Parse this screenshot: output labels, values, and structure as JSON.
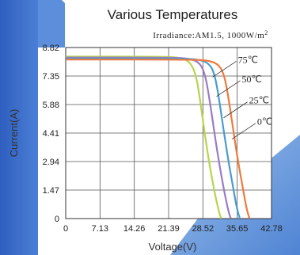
{
  "chart_data": {
    "type": "line",
    "title": "Various Temperatures",
    "subtitle": "Irradiance:AM1.5, 1000W/m",
    "subtitle_sup": "2",
    "xlabel": "Voltage(V)",
    "ylabel": "Current(A)",
    "xlim": [
      0,
      42.78
    ],
    "ylim": [
      0,
      8.82
    ],
    "xticks": [
      0,
      7.13,
      14.26,
      21.39,
      28.52,
      35.65,
      42.78
    ],
    "xtick_labels": [
      "0",
      "7.13",
      "14.26",
      "21.39",
      "28.52",
      "35.65",
      "42.78"
    ],
    "yticks": [
      0,
      1.47,
      2.94,
      4.41,
      5.88,
      7.35,
      8.82
    ],
    "ytick_labels": [
      "0",
      "1.47",
      "2.94",
      "4.41",
      "5.88",
      "7.35",
      "8.82"
    ],
    "grid": true,
    "series": [
      {
        "name": "75℃",
        "color": "#b5d64a",
        "label_anchor": [
          33.5,
          7.95
        ],
        "points": [
          [
            0,
            8.35
          ],
          [
            20,
            8.35
          ],
          [
            24,
            8.3
          ],
          [
            26,
            8.05
          ],
          [
            27.2,
            7.3
          ],
          [
            28,
            6.0
          ],
          [
            29,
            4.2
          ],
          [
            30,
            2.6
          ],
          [
            31,
            1.3
          ],
          [
            31.8,
            0.4
          ],
          [
            32.3,
            0
          ]
        ]
      },
      {
        "name": "50℃",
        "color": "#9a7bc6",
        "label_anchor": [
          34.3,
          6.95
        ],
        "points": [
          [
            0,
            8.3
          ],
          [
            22,
            8.3
          ],
          [
            26,
            8.25
          ],
          [
            28,
            8.0
          ],
          [
            29,
            7.4
          ],
          [
            29.8,
            6.3
          ],
          [
            30.8,
            4.6
          ],
          [
            31.8,
            3.0
          ],
          [
            32.8,
            1.6
          ],
          [
            33.7,
            0.5
          ],
          [
            34.3,
            0
          ]
        ]
      },
      {
        "name": "25℃",
        "color": "#4a9bd0",
        "label_anchor": [
          35.8,
          5.85
        ],
        "points": [
          [
            0,
            8.25
          ],
          [
            24,
            8.25
          ],
          [
            28,
            8.2
          ],
          [
            30,
            7.95
          ],
          [
            31,
            7.4
          ],
          [
            31.8,
            6.3
          ],
          [
            32.8,
            4.6
          ],
          [
            33.8,
            3.0
          ],
          [
            34.8,
            1.6
          ],
          [
            35.6,
            0.5
          ],
          [
            36.2,
            0
          ]
        ]
      },
      {
        "name": "0℃",
        "color": "#f07a3c",
        "label_anchor": [
          37.5,
          4.75
        ],
        "points": [
          [
            0,
            8.2
          ],
          [
            26,
            8.2
          ],
          [
            30,
            8.15
          ],
          [
            32,
            7.9
          ],
          [
            33,
            7.35
          ],
          [
            33.8,
            6.3
          ],
          [
            34.8,
            4.6
          ],
          [
            35.8,
            3.0
          ],
          [
            36.8,
            1.6
          ],
          [
            37.6,
            0.5
          ],
          [
            38.2,
            0
          ]
        ]
      }
    ],
    "legend_placement": "labels on curves, right"
  }
}
